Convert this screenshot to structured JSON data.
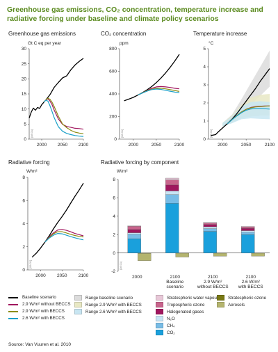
{
  "title": "Greenhouse gas emissions, CO₂ concentration, temperature increase and radiative forcing under baseline and climate policy scenarios",
  "source": "Source: Van Vuuren et al. 2010",
  "colors": {
    "baseline": "#000000",
    "bau29": "#a0165e",
    "s29": "#8c8c14",
    "s26": "#1aa0c8",
    "range_base": "#dcdcdc",
    "range_29": "#e8e8c4",
    "range_26": "#c8e6f2",
    "co2": "#1aa0dc",
    "ch4": "#78bce6",
    "n2o": "#c8e4f4",
    "halogenated": "#a0165e",
    "trop_ozone": "#c8648c",
    "strat_water": "#e8c8d8",
    "strat_ozone": "#787814",
    "aerosols": "#b4b46e"
  },
  "chart_data": [
    {
      "type": "line",
      "title": "Greenhouse gas emissions",
      "ylabel": "Gt C eq per year",
      "id_label": "[08.01]",
      "ylim": [
        0,
        30
      ],
      "yticks": [
        0,
        5,
        10,
        15,
        20,
        25,
        30
      ],
      "xlim": [
        1970,
        2100
      ],
      "xticks": [
        2000,
        2050,
        2100
      ],
      "series": [
        {
          "name": "Baseline scenario",
          "color_key": "baseline",
          "x": [
            1970,
            1975,
            1980,
            1985,
            1990,
            1995,
            2000,
            2005,
            2010,
            2020,
            2030,
            2040,
            2050,
            2060,
            2070,
            2080,
            2090,
            2100
          ],
          "y": [
            7.0,
            9.0,
            10.3,
            9.6,
            10.5,
            10.2,
            11.4,
            12.2,
            13.0,
            14.8,
            17.2,
            18.8,
            20.3,
            21.0,
            23.0,
            24.6,
            25.8,
            26.8
          ]
        },
        {
          "name": "2.9 W/m² without BECCS",
          "color_key": "bau29",
          "x": [
            2005,
            2010,
            2015,
            2020,
            2025,
            2030,
            2040,
            2050,
            2060,
            2070,
            2080,
            2090,
            2100
          ],
          "y": [
            12.3,
            13.0,
            13.4,
            12.6,
            11.4,
            9.6,
            6.7,
            4.9,
            4.2,
            3.9,
            3.6,
            3.5,
            3.3
          ]
        },
        {
          "name": "2.9 W/m² with BECCS",
          "color_key": "s29",
          "x": [
            2005,
            2010,
            2015,
            2020,
            2025,
            2030,
            2040,
            2050,
            2060,
            2070,
            2080,
            2090,
            2100
          ],
          "y": [
            12.3,
            13.0,
            13.6,
            13.2,
            12.2,
            10.8,
            7.6,
            5.0,
            3.8,
            2.9,
            2.3,
            2.0,
            1.8
          ]
        },
        {
          "name": "2.6 W/m² with BECCS",
          "color_key": "s26",
          "x": [
            2005,
            2010,
            2015,
            2020,
            2025,
            2030,
            2040,
            2050,
            2060,
            2070,
            2080,
            2090,
            2100
          ],
          "y": [
            12.3,
            12.9,
            12.6,
            11.0,
            9.1,
            7.1,
            4.1,
            2.6,
            1.9,
            1.5,
            1.2,
            1.0,
            0.9
          ]
        }
      ]
    },
    {
      "type": "line",
      "title": "CO₂ concentration",
      "ylabel": "ppm",
      "id_label": "[08.01]",
      "ylim": [
        0,
        800
      ],
      "yticks": [
        0,
        200,
        400,
        600,
        800
      ],
      "xlim": [
        1970,
        2100
      ],
      "xticks": [
        2000,
        2050,
        2100
      ],
      "series": [
        {
          "name": "Baseline scenario",
          "color_key": "baseline",
          "x": [
            1980,
            1990,
            2000,
            2010,
            2020,
            2030,
            2040,
            2050,
            2060,
            2070,
            2080,
            2090,
            2100
          ],
          "y": [
            339,
            354,
            369,
            390,
            412,
            437,
            465,
            500,
            540,
            585,
            635,
            690,
            750
          ]
        },
        {
          "name": "2.9 W/m² without BECCS",
          "color_key": "bau29",
          "x": [
            2010,
            2020,
            2030,
            2040,
            2050,
            2060,
            2070,
            2080,
            2090,
            2100
          ],
          "y": [
            390,
            410,
            430,
            450,
            462,
            465,
            462,
            457,
            450,
            445
          ]
        },
        {
          "name": "2.9 W/m² with BECCS",
          "color_key": "s29",
          "x": [
            2010,
            2020,
            2030,
            2040,
            2050,
            2060,
            2070,
            2080,
            2090,
            2100
          ],
          "y": [
            390,
            410,
            428,
            442,
            450,
            450,
            445,
            438,
            430,
            422
          ]
        },
        {
          "name": "2.6 W/m² with BECCS",
          "color_key": "s26",
          "x": [
            2010,
            2020,
            2030,
            2040,
            2050,
            2060,
            2070,
            2080,
            2090,
            2100
          ],
          "y": [
            390,
            408,
            425,
            438,
            443,
            440,
            432,
            424,
            416,
            410
          ]
        }
      ]
    },
    {
      "type": "line",
      "title": "Temperature increase",
      "ylabel": "°C",
      "id_label": "[08.01]",
      "ylim": [
        0,
        5
      ],
      "yticks": [
        0,
        1,
        2,
        3,
        4,
        5
      ],
      "xlim": [
        1970,
        2100
      ],
      "xticks": [
        2000,
        2050,
        2100
      ],
      "bands": [
        {
          "color_key": "range_base",
          "x": [
            2000,
            2020,
            2040,
            2060,
            2080,
            2100
          ],
          "lo": [
            0.7,
            0.95,
            1.35,
            1.9,
            2.4,
            2.9
          ],
          "hi": [
            0.9,
            1.35,
            2.2,
            3.1,
            4.0,
            4.9
          ]
        },
        {
          "color_key": "range_29",
          "x": [
            2000,
            2020,
            2040,
            2060,
            2080,
            2100
          ],
          "lo": [
            0.7,
            0.9,
            1.15,
            1.25,
            1.3,
            1.3
          ],
          "hi": [
            0.9,
            1.3,
            1.9,
            2.3,
            2.45,
            2.5
          ]
        },
        {
          "color_key": "range_26",
          "x": [
            2000,
            2020,
            2040,
            2060,
            2080,
            2100
          ],
          "lo": [
            0.7,
            0.88,
            1.1,
            1.15,
            1.12,
            1.1
          ],
          "hi": [
            0.9,
            1.25,
            1.8,
            2.05,
            2.1,
            2.05
          ]
        }
      ],
      "series": [
        {
          "name": "Baseline scenario",
          "color_key": "baseline",
          "x": [
            1975,
            1985,
            1990,
            2000,
            2010,
            2020,
            2030,
            2040,
            2050,
            2060,
            2070,
            2080,
            2090,
            2100
          ],
          "y": [
            0.2,
            0.25,
            0.38,
            0.62,
            0.85,
            1.1,
            1.4,
            1.75,
            2.1,
            2.45,
            2.8,
            3.2,
            3.55,
            3.9
          ]
        },
        {
          "name": "2.9 W/m² without BECCS",
          "color_key": "bau29",
          "x": [
            2010,
            2020,
            2030,
            2040,
            2050,
            2060,
            2070,
            2080,
            2090,
            2100
          ],
          "y": [
            0.85,
            1.08,
            1.3,
            1.5,
            1.65,
            1.75,
            1.8,
            1.82,
            1.83,
            1.83
          ]
        },
        {
          "name": "2.9 W/m² with BECCS",
          "color_key": "s29",
          "x": [
            2010,
            2020,
            2030,
            2040,
            2050,
            2060,
            2070,
            2080,
            2090,
            2100
          ],
          "y": [
            0.85,
            1.08,
            1.3,
            1.5,
            1.65,
            1.73,
            1.78,
            1.8,
            1.82,
            1.84
          ]
        },
        {
          "name": "2.6 W/m² with BECCS",
          "color_key": "s26",
          "x": [
            2010,
            2020,
            2030,
            2040,
            2050,
            2060,
            2070,
            2080,
            2090,
            2100
          ],
          "y": [
            0.85,
            1.07,
            1.28,
            1.46,
            1.6,
            1.67,
            1.7,
            1.7,
            1.68,
            1.66
          ]
        }
      ]
    },
    {
      "type": "line",
      "title": "Radiative forcing",
      "ylabel": "W/m²",
      "id_label": "[08.01]",
      "ylim": [
        0,
        8
      ],
      "yticks": [
        0,
        2,
        4,
        6,
        8
      ],
      "xlim": [
        1970,
        2100
      ],
      "xticks": [
        2000,
        2050,
        2100
      ],
      "series": [
        {
          "name": "Baseline scenario",
          "color_key": "baseline",
          "x": [
            1980,
            1990,
            2000,
            2010,
            2020,
            2030,
            2040,
            2050,
            2060,
            2070,
            2080,
            2090,
            2100
          ],
          "y": [
            1.1,
            1.45,
            1.9,
            2.4,
            2.95,
            3.55,
            4.1,
            4.6,
            5.15,
            5.75,
            6.35,
            6.9,
            7.5
          ]
        },
        {
          "name": "2.9 W/m² without BECCS",
          "color_key": "bau29",
          "x": [
            2010,
            2020,
            2030,
            2040,
            2050,
            2060,
            2070,
            2080,
            2090,
            2100
          ],
          "y": [
            2.4,
            2.85,
            3.2,
            3.45,
            3.5,
            3.42,
            3.3,
            3.15,
            3.05,
            2.95
          ]
        },
        {
          "name": "2.9 W/m² with BECCS",
          "color_key": "s29",
          "x": [
            2010,
            2020,
            2030,
            2040,
            2050,
            2060,
            2070,
            2080,
            2090,
            2100
          ],
          "y": [
            2.4,
            2.8,
            3.12,
            3.3,
            3.3,
            3.2,
            3.08,
            2.98,
            2.9,
            2.85
          ]
        },
        {
          "name": "2.6 W/m² with BECCS",
          "color_key": "s26",
          "x": [
            2010,
            2020,
            2030,
            2040,
            2050,
            2060,
            2070,
            2080,
            2090,
            2100
          ],
          "y": [
            2.4,
            2.75,
            3.0,
            3.15,
            3.12,
            3.0,
            2.88,
            2.78,
            2.68,
            2.6
          ]
        }
      ]
    },
    {
      "type": "bar",
      "stacked": true,
      "title": "Radiative forcing by component",
      "ylabel": "W/m²",
      "id_label": "[08.01]",
      "ylim": [
        -2,
        8
      ],
      "yticks": [
        -2,
        0,
        2,
        4,
        6,
        8
      ],
      "categories": [
        [
          "2000"
        ],
        [
          "2100",
          "Baseline",
          "scenario"
        ],
        [
          "2100",
          "2.9 W/m²",
          "without BECCS"
        ],
        [
          "2100",
          "2.6 W/m²",
          "with BECCS"
        ]
      ],
      "positive_series": [
        {
          "name": "CO₂",
          "color_key": "co2",
          "values": [
            1.55,
            5.4,
            2.35,
            2.0
          ]
        },
        {
          "name": "CH₄",
          "color_key": "ch4",
          "values": [
            0.5,
            0.95,
            0.3,
            0.25
          ]
        },
        {
          "name": "N₂O",
          "color_key": "n2o",
          "values": [
            0.15,
            0.4,
            0.2,
            0.18
          ]
        },
        {
          "name": "Halogenated gases",
          "color_key": "halogenated",
          "values": [
            0.35,
            0.65,
            0.25,
            0.25
          ]
        },
        {
          "name": "Tropospheric ozone",
          "color_key": "trop_ozone",
          "values": [
            0.35,
            0.55,
            0.15,
            0.15
          ]
        },
        {
          "name": "Stratospheric water vapour",
          "color_key": "strat_water",
          "values": [
            0.05,
            0.2,
            0.07,
            0.06
          ]
        }
      ],
      "negative_series": [
        {
          "name": "Stratospheric ozone",
          "color_key": "strat_ozone",
          "values": [
            -0.05,
            -0.03,
            -0.03,
            -0.03
          ]
        },
        {
          "name": "Aerosols",
          "color_key": "aerosols",
          "values": [
            -0.8,
            -0.42,
            -0.33,
            -0.32
          ]
        }
      ]
    }
  ],
  "legend": {
    "col1": [
      {
        "label": "Baseline scenario",
        "color_key": "baseline"
      },
      {
        "label": "2.9 W/m² without BECCS",
        "color_key": "bau29"
      },
      {
        "label": "2.9 W/m² with BECCS",
        "color_key": "s29"
      },
      {
        "label": "2.6 W/m² with BECCS",
        "color_key": "s26"
      }
    ],
    "col2": [
      {
        "label": "Range baseline scenario",
        "color_key": "range_base"
      },
      {
        "label": "Range 2.9 W/m² with BECCS",
        "color_key": "range_29"
      },
      {
        "label": "Range 2.6 W/m² with BECCS",
        "color_key": "range_26"
      }
    ],
    "col3": [
      {
        "label": "Stratospheric water vapour",
        "color_key": "strat_water"
      },
      {
        "label": "Tropospheric ozone",
        "color_key": "trop_ozone"
      },
      {
        "label": "Halogenated gases",
        "color_key": "halogenated"
      },
      {
        "label": "N₂O",
        "color_key": "n2o"
      },
      {
        "label": "CH₄",
        "color_key": "ch4"
      },
      {
        "label": "CO₂",
        "color_key": "co2"
      }
    ],
    "col4": [
      {
        "label": "Stratospheric ozone",
        "color_key": "strat_ozone"
      },
      {
        "label": "Aerosols",
        "color_key": "aerosols"
      }
    ]
  }
}
